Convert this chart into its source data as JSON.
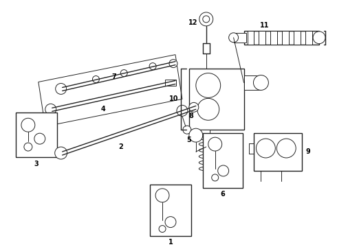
{
  "bg_color": "#ffffff",
  "line_color": "#222222",
  "label_color": "#000000",
  "fig_width": 4.9,
  "fig_height": 3.6,
  "dpi": 100
}
